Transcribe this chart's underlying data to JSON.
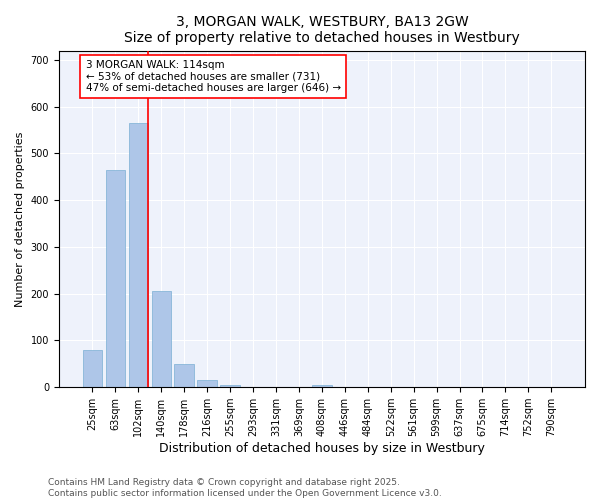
{
  "title": "3, MORGAN WALK, WESTBURY, BA13 2GW",
  "subtitle": "Size of property relative to detached houses in Westbury",
  "xlabel": "Distribution of detached houses by size in Westbury",
  "ylabel": "Number of detached properties",
  "categories": [
    "25sqm",
    "63sqm",
    "102sqm",
    "140sqm",
    "178sqm",
    "216sqm",
    "255sqm",
    "293sqm",
    "331sqm",
    "369sqm",
    "408sqm",
    "446sqm",
    "484sqm",
    "522sqm",
    "561sqm",
    "599sqm",
    "637sqm",
    "675sqm",
    "714sqm",
    "752sqm",
    "790sqm"
  ],
  "values": [
    80,
    465,
    565,
    205,
    50,
    15,
    5,
    0,
    0,
    0,
    5,
    0,
    0,
    0,
    0,
    0,
    0,
    0,
    0,
    0,
    0
  ],
  "bar_color": "#aec6e8",
  "bar_edge_color": "#7aafd4",
  "vline_x": 2.425,
  "vline_color": "red",
  "annotation_text": "3 MORGAN WALK: 114sqm\n← 53% of detached houses are smaller (731)\n47% of semi-detached houses are larger (646) →",
  "ylim": [
    0,
    720
  ],
  "yticks": [
    0,
    100,
    200,
    300,
    400,
    500,
    600,
    700
  ],
  "bg_color": "#eef2fb",
  "footer_text": "Contains HM Land Registry data © Crown copyright and database right 2025.\nContains public sector information licensed under the Open Government Licence v3.0.",
  "title_fontsize": 10,
  "subtitle_fontsize": 9,
  "xlabel_fontsize": 9,
  "ylabel_fontsize": 8,
  "tick_fontsize": 7,
  "footer_fontsize": 6.5,
  "annot_fontsize": 7.5
}
